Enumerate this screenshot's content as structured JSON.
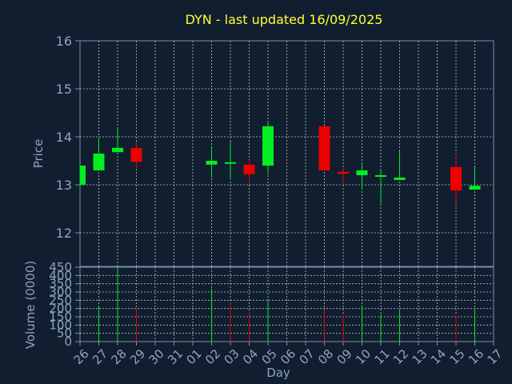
{
  "chart_data": [
    {
      "type": "candlestick",
      "title": "DYN - last updated 16/09/2025",
      "ylabel": "Price",
      "ylim": [
        11.3,
        16
      ],
      "yticks": [
        12,
        13,
        14,
        15,
        16
      ],
      "grid": true,
      "x": [
        "26",
        "27",
        "28",
        "29",
        "30",
        "31",
        "01",
        "02",
        "03",
        "04",
        "05",
        "06",
        "07",
        "08",
        "09",
        "10",
        "11",
        "12",
        "13",
        "14",
        "15",
        "16",
        "17"
      ],
      "candles": [
        {
          "day": "26",
          "open": 13.0,
          "high": 13.4,
          "low": 13.0,
          "close": 13.4
        },
        {
          "day": "27",
          "open": 13.3,
          "high": 14.0,
          "low": 13.3,
          "close": 13.65
        },
        {
          "day": "28",
          "open": 13.68,
          "high": 14.2,
          "low": 13.68,
          "close": 13.77
        },
        {
          "day": "29",
          "open": 13.77,
          "high": 13.9,
          "low": 13.35,
          "close": 13.48
        },
        {
          "day": "02",
          "open": 13.42,
          "high": 13.78,
          "low": 13.15,
          "close": 13.5
        },
        {
          "day": "03",
          "open": 13.47,
          "high": 13.9,
          "low": 13.1,
          "close": 13.47
        },
        {
          "day": "04",
          "open": 13.42,
          "high": 13.52,
          "low": 13.0,
          "close": 13.22
        },
        {
          "day": "05",
          "open": 13.4,
          "high": 14.33,
          "low": 13.22,
          "close": 14.22
        },
        {
          "day": "08",
          "open": 14.22,
          "high": 14.22,
          "low": 13.3,
          "close": 13.3
        },
        {
          "day": "09",
          "open": 13.27,
          "high": 13.32,
          "low": 13.0,
          "close": 13.23
        },
        {
          "day": "10",
          "open": 13.2,
          "high": 13.45,
          "low": 12.9,
          "close": 13.3
        },
        {
          "day": "11",
          "open": 13.17,
          "high": 13.32,
          "low": 12.6,
          "close": 13.2
        },
        {
          "day": "12",
          "open": 13.1,
          "high": 13.7,
          "low": 13.1,
          "close": 13.15
        },
        {
          "day": "15",
          "open": 13.37,
          "high": 13.6,
          "low": 12.6,
          "close": 12.88
        },
        {
          "day": "16",
          "open": 12.9,
          "high": 13.38,
          "low": 12.9,
          "close": 12.98
        }
      ],
      "colors": {
        "up": "#00ee22",
        "down": "#ee0000"
      }
    },
    {
      "type": "bar",
      "ylabel": "Volume (0000)",
      "xlabel": "Day",
      "ylim": [
        0,
        450
      ],
      "yticks": [
        0,
        50,
        100,
        150,
        200,
        250,
        300,
        350,
        400,
        450
      ],
      "grid": true,
      "bars": [
        {
          "day": "27",
          "value": 215,
          "dir": "up"
        },
        {
          "day": "28",
          "value": 440,
          "dir": "up"
        },
        {
          "day": "29",
          "value": 200,
          "dir": "down"
        },
        {
          "day": "02",
          "value": 320,
          "dir": "up"
        },
        {
          "day": "03",
          "value": 240,
          "dir": "down"
        },
        {
          "day": "04",
          "value": 180,
          "dir": "down"
        },
        {
          "day": "05",
          "value": 245,
          "dir": "up"
        },
        {
          "day": "08",
          "value": 195,
          "dir": "down"
        },
        {
          "day": "09",
          "value": 160,
          "dir": "down"
        },
        {
          "day": "10",
          "value": 215,
          "dir": "up"
        },
        {
          "day": "11",
          "value": 165,
          "dir": "up"
        },
        {
          "day": "12",
          "value": 195,
          "dir": "up"
        },
        {
          "day": "15",
          "value": 160,
          "dir": "down"
        },
        {
          "day": "16",
          "value": 195,
          "dir": "up"
        }
      ]
    }
  ],
  "colors": {
    "background": "#111e2f",
    "axis": "#7f8fa8",
    "grid": "#b7c3d6",
    "title": "#ffff33",
    "label": "#8fa3c2"
  }
}
